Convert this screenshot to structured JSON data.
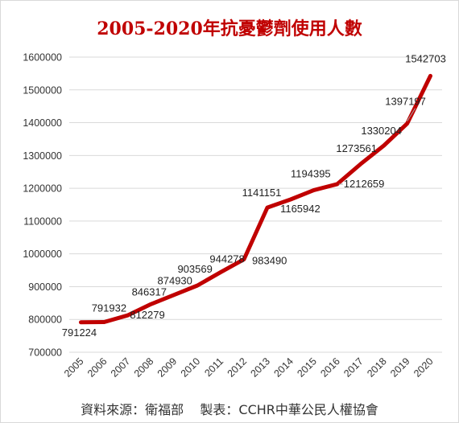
{
  "chart_data": {
    "type": "line",
    "title": "2005-2020年抗憂鬱劑使用人數",
    "xlabel": "",
    "ylabel": "",
    "x": [
      "2005",
      "2006",
      "2007",
      "2008",
      "2009",
      "2010",
      "2011",
      "2012",
      "2013",
      "2014",
      "2015",
      "2016",
      "2017",
      "2018",
      "2019",
      "2020"
    ],
    "series": [
      {
        "values": [
          791224,
          791932,
          812279,
          846317,
          874930,
          903569,
          944278,
          983490,
          1141151,
          1165942,
          1194395,
          1212659,
          1273561,
          1330204,
          1397197,
          1542703
        ],
        "labels": [
          "791224",
          "791932",
          "812279",
          "846317",
          "874930",
          "903569",
          "944278",
          "983490",
          "1141151",
          "1165942",
          "1194395",
          "1212659",
          "1273561",
          "1330204",
          "1397197",
          "1542703"
        ]
      }
    ],
    "ylim": [
      700000,
      1600000
    ],
    "yticks": [
      700000,
      800000,
      900000,
      1000000,
      1100000,
      1200000,
      1300000,
      1400000,
      1500000,
      1600000
    ],
    "ytick_labels": [
      "700000",
      "800000",
      "900000",
      "1000000",
      "1100000",
      "1200000",
      "1300000",
      "1400000",
      "1500000",
      "1600000"
    ],
    "grid": true,
    "legend": "none",
    "line_color": "#c00000"
  },
  "footer": {
    "source": "資料來源：衛福部    製表：CCHR中華公民人權協會"
  }
}
